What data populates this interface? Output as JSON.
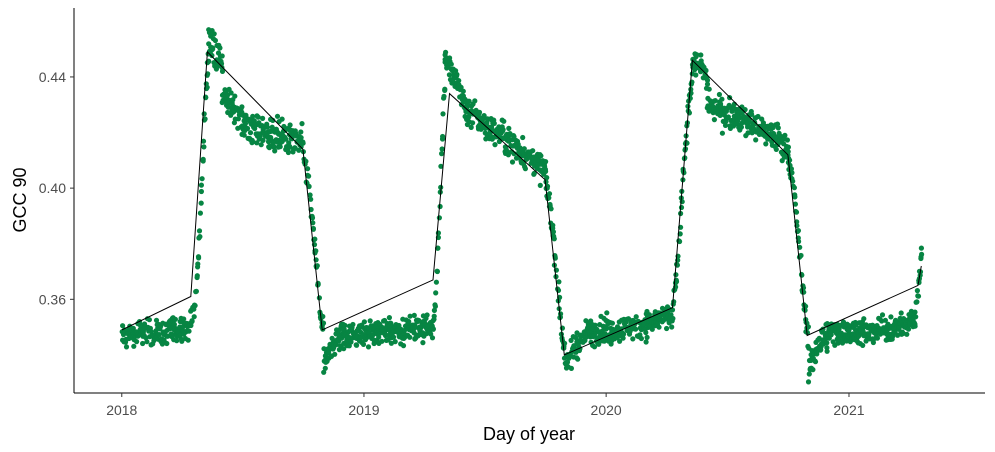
{
  "chart_data": {
    "type": "scatter",
    "xlabel": "Day of year",
    "ylabel": "GCC 90",
    "x_type": "date",
    "xlim": [
      "2017-10-21",
      "2021-07-25"
    ],
    "ylim": [
      0.3263,
      0.4648
    ],
    "x_ticks": [
      {
        "date": "2018-01-01",
        "label": "2018"
      },
      {
        "date": "2019-01-01",
        "label": "2019"
      },
      {
        "date": "2020-01-01",
        "label": "2020"
      },
      {
        "date": "2021-01-01",
        "label": "2021"
      }
    ],
    "y_ticks": [
      {
        "value": 0.36,
        "label": "0.36"
      },
      {
        "value": 0.4,
        "label": "0.40"
      },
      {
        "value": 0.44,
        "label": "0.44"
      }
    ],
    "grid": false,
    "colors": {
      "points": "#078543",
      "line": "#000000",
      "axis": "#000000"
    },
    "series": [
      {
        "kind": "points",
        "segments": [
          {
            "start": "2018-01-01",
            "end": "2018-04-15",
            "points": [
              [
                "2018-01-01",
                0.346
              ],
              [
                "2018-01-20",
                0.348
              ],
              [
                "2018-02-10",
                0.349
              ],
              [
                "2018-03-01",
                0.348
              ],
              [
                "2018-03-20",
                0.349
              ],
              [
                "2018-04-10",
                0.35
              ],
              [
                "2018-04-15",
                0.351
              ]
            ],
            "noise": 0.0022
          },
          {
            "start": "2018-04-15",
            "end": "2018-05-12",
            "points": [
              [
                "2018-04-15",
                0.351
              ],
              [
                "2018-04-21",
                0.358
              ],
              [
                "2018-04-26",
                0.375
              ],
              [
                "2018-05-01",
                0.4
              ],
              [
                "2018-05-06",
                0.428
              ],
              [
                "2018-05-12",
                0.45
              ]
            ],
            "noise": 0.002
          },
          {
            "start": "2018-05-12",
            "end": "2018-06-01",
            "points": [
              [
                "2018-05-12",
                0.452
              ],
              [
                "2018-05-20",
                0.45
              ],
              [
                "2018-06-01",
                0.446
              ]
            ],
            "noise": 0.003
          },
          {
            "start": "2018-06-01",
            "end": "2018-07-01",
            "points": [
              [
                "2018-06-01",
                0.433
              ],
              [
                "2018-06-15",
                0.43
              ],
              [
                "2018-07-01",
                0.425
              ]
            ],
            "noise": 0.0025
          },
          {
            "start": "2018-07-01",
            "end": "2018-10-01",
            "points": [
              [
                "2018-07-01",
                0.423
              ],
              [
                "2018-08-01",
                0.42
              ],
              [
                "2018-09-01",
                0.418
              ],
              [
                "2018-10-01",
                0.416
              ]
            ],
            "noise": 0.003
          },
          {
            "start": "2018-10-01",
            "end": "2018-11-01",
            "points": [
              [
                "2018-10-01",
                0.414
              ],
              [
                "2018-10-10",
                0.4
              ],
              [
                "2018-10-18",
                0.38
              ],
              [
                "2018-10-25",
                0.36
              ],
              [
                "2018-11-01",
                0.346
              ]
            ],
            "noise": 0.002
          },
          {
            "start": "2018-11-01",
            "end": "2018-12-01",
            "points": [
              [
                "2018-11-01",
                0.336
              ],
              [
                "2018-11-15",
                0.344
              ],
              [
                "2018-12-01",
                0.347
              ]
            ],
            "noise": 0.0025
          },
          {
            "start": "2018-12-01",
            "end": "2019-04-15",
            "points": [
              [
                "2018-12-01",
                0.347
              ],
              [
                "2019-01-15",
                0.348
              ],
              [
                "2019-03-01",
                0.349
              ],
              [
                "2019-04-15",
                0.35
              ]
            ],
            "noise": 0.0022
          },
          {
            "start": "2019-04-15",
            "end": "2019-05-03",
            "points": [
              [
                "2019-04-15",
                0.351
              ],
              [
                "2019-04-21",
                0.37
              ],
              [
                "2019-04-25",
                0.395
              ],
              [
                "2019-04-29",
                0.42
              ],
              [
                "2019-05-03",
                0.443
              ]
            ],
            "noise": 0.002
          },
          {
            "start": "2019-05-03",
            "end": "2019-06-01",
            "points": [
              [
                "2019-05-03",
                0.447
              ],
              [
                "2019-05-15",
                0.44
              ],
              [
                "2019-06-01",
                0.432
              ]
            ],
            "noise": 0.0025
          },
          {
            "start": "2019-06-01",
            "end": "2019-10-01",
            "points": [
              [
                "2019-06-01",
                0.428
              ],
              [
                "2019-07-01",
                0.423
              ],
              [
                "2019-08-01",
                0.418
              ],
              [
                "2019-09-01",
                0.412
              ],
              [
                "2019-10-01",
                0.406
              ]
            ],
            "noise": 0.0025
          },
          {
            "start": "2019-10-01",
            "end": "2019-11-01",
            "points": [
              [
                "2019-10-01",
                0.404
              ],
              [
                "2019-10-10",
                0.39
              ],
              [
                "2019-10-18",
                0.37
              ],
              [
                "2019-10-25",
                0.35
              ],
              [
                "2019-11-01",
                0.338
              ]
            ],
            "noise": 0.002
          },
          {
            "start": "2019-11-01",
            "end": "2019-12-01",
            "points": [
              [
                "2019-11-01",
                0.336
              ],
              [
                "2019-11-15",
                0.343
              ],
              [
                "2019-12-01",
                0.347
              ]
            ],
            "noise": 0.0025
          },
          {
            "start": "2019-12-01",
            "end": "2020-04-10",
            "points": [
              [
                "2019-12-01",
                0.348
              ],
              [
                "2020-01-15",
                0.349
              ],
              [
                "2020-03-01",
                0.351
              ],
              [
                "2020-04-10",
                0.354
              ]
            ],
            "noise": 0.0022
          },
          {
            "start": "2020-04-10",
            "end": "2020-05-10",
            "points": [
              [
                "2020-04-10",
                0.355
              ],
              [
                "2020-04-18",
                0.375
              ],
              [
                "2020-04-25",
                0.4
              ],
              [
                "2020-05-02",
                0.425
              ],
              [
                "2020-05-10",
                0.444
              ]
            ],
            "noise": 0.002
          },
          {
            "start": "2020-05-10",
            "end": "2020-06-01",
            "points": [
              [
                "2020-05-10",
                0.446
              ],
              [
                "2020-05-20",
                0.444
              ],
              [
                "2020-06-01",
                0.438
              ]
            ],
            "noise": 0.0025
          },
          {
            "start": "2020-06-01",
            "end": "2020-10-01",
            "points": [
              [
                "2020-06-01",
                0.43
              ],
              [
                "2020-07-01",
                0.427
              ],
              [
                "2020-08-01",
                0.424
              ],
              [
                "2020-09-01",
                0.42
              ],
              [
                "2020-10-01",
                0.415
              ]
            ],
            "noise": 0.0025
          },
          {
            "start": "2020-10-01",
            "end": "2020-11-01",
            "points": [
              [
                "2020-10-01",
                0.412
              ],
              [
                "2020-10-10",
                0.398
              ],
              [
                "2020-10-18",
                0.378
              ],
              [
                "2020-10-25",
                0.358
              ],
              [
                "2020-11-01",
                0.345
              ]
            ],
            "noise": 0.002
          },
          {
            "start": "2020-11-01",
            "end": "2020-12-01",
            "points": [
              [
                "2020-11-01",
                0.334
              ],
              [
                "2020-11-15",
                0.344
              ],
              [
                "2020-12-01",
                0.347
              ]
            ],
            "noise": 0.0025
          },
          {
            "start": "2020-12-01",
            "end": "2021-04-10",
            "points": [
              [
                "2020-12-01",
                0.348
              ],
              [
                "2021-01-15",
                0.348
              ],
              [
                "2021-03-01",
                0.349
              ],
              [
                "2021-04-10",
                0.352
              ]
            ],
            "noise": 0.0022
          },
          {
            "start": "2021-04-10",
            "end": "2021-04-20",
            "points": [
              [
                "2021-04-10",
                0.354
              ],
              [
                "2021-04-15",
                0.362
              ],
              [
                "2021-04-20",
                0.378
              ]
            ],
            "noise": 0.002
          }
        ]
      },
      {
        "kind": "line",
        "points": [
          [
            "2018-01-01",
            0.349
          ],
          [
            "2018-04-15",
            0.361
          ],
          [
            "2018-05-10",
            0.449
          ],
          [
            "2018-10-01",
            0.414
          ],
          [
            "2018-10-30",
            0.349
          ],
          [
            "2019-04-15",
            0.367
          ],
          [
            "2019-05-10",
            0.434
          ],
          [
            "2019-10-01",
            0.403
          ],
          [
            "2019-10-30",
            0.34
          ],
          [
            "2020-04-10",
            0.357
          ],
          [
            "2020-05-10",
            0.446
          ],
          [
            "2020-10-01",
            0.412
          ],
          [
            "2020-10-30",
            0.347
          ],
          [
            "2021-04-15",
            0.365
          ],
          [
            "2021-04-20",
            0.372
          ]
        ]
      }
    ]
  }
}
